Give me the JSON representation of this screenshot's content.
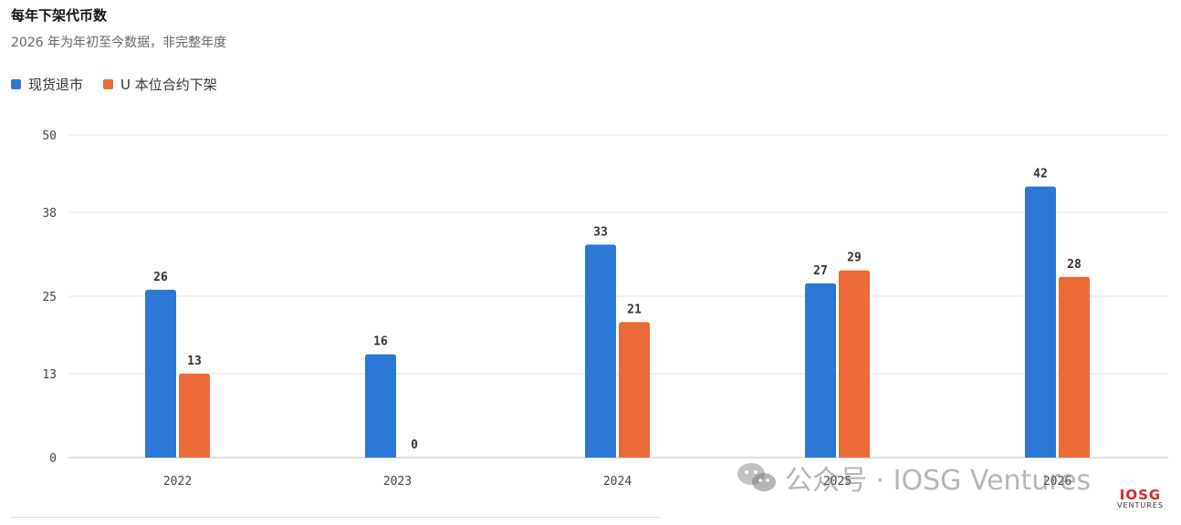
{
  "title": "每年下架代币数",
  "subtitle": "2026 年为年初至今数据，非完整年度",
  "colors": {
    "spot": "#2b77d6",
    "futures": "#ec6a36",
    "grid": "#e3e3e3",
    "axis": "#bbbbbb"
  },
  "chart_data": {
    "type": "bar",
    "categories": [
      "2022",
      "2023",
      "2024",
      "2025",
      "2026"
    ],
    "series": [
      {
        "name": "现货退市",
        "values": [
          26,
          16,
          33,
          27,
          42
        ]
      },
      {
        "name": "U 本位合约下架",
        "values": [
          13,
          0,
          21,
          29,
          28
        ]
      }
    ],
    "y_ticks": [
      0,
      13,
      25,
      38,
      50
    ],
    "ylim": [
      0,
      50
    ],
    "grid": true,
    "legend_position": "top-left"
  },
  "watermark": {
    "text": "公众号 · IOSG Ventures",
    "logo_main": "IOSG",
    "logo_sub": "VENTURES"
  }
}
